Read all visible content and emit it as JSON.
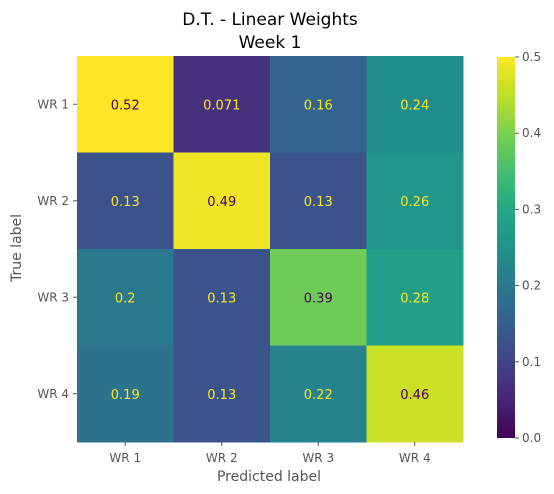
{
  "chart_data": {
    "type": "heatmap",
    "title": [
      "D.T. - Linear Weights",
      "Week 1"
    ],
    "xlabel": "Predicted label",
    "ylabel": "True label",
    "x_categories": [
      "WR 1",
      "WR 2",
      "WR 3",
      "WR 4"
    ],
    "y_categories": [
      "WR 1",
      "WR 2",
      "WR 3",
      "WR 4"
    ],
    "values": [
      [
        0.52,
        0.071,
        0.16,
        0.24
      ],
      [
        0.13,
        0.49,
        0.13,
        0.26
      ],
      [
        0.2,
        0.13,
        0.39,
        0.28
      ],
      [
        0.19,
        0.13,
        0.22,
        0.46
      ]
    ],
    "value_labels": [
      [
        "0.52",
        "0.071",
        "0.16",
        "0.24"
      ],
      [
        "0.13",
        "0.49",
        "0.13",
        "0.26"
      ],
      [
        "0.2",
        "0.13",
        "0.39",
        "0.28"
      ],
      [
        "0.19",
        "0.13",
        "0.22",
        "0.46"
      ]
    ],
    "colormap": "viridis",
    "color_range": [
      0.0,
      0.5
    ],
    "colorbar_ticks": [
      "0.0",
      "0.1",
      "0.2",
      "0.3",
      "0.4",
      "0.5"
    ],
    "text_color_light": "#fde725",
    "text_color_dark": "#440154",
    "grid": false
  }
}
